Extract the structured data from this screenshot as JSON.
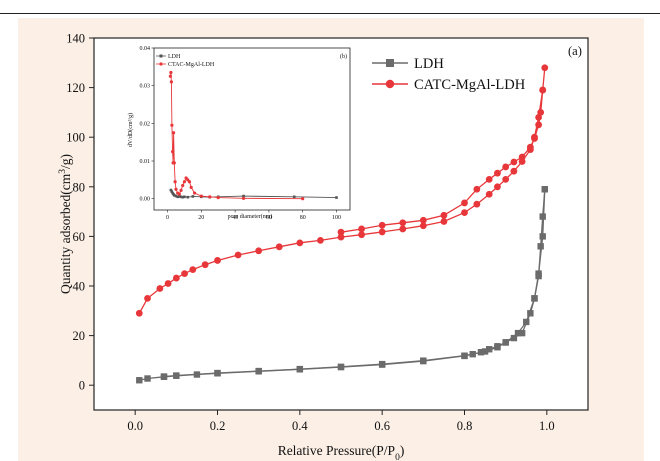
{
  "chart_data": [
    {
      "type": "line",
      "panel_label": "(a)",
      "xlabel": "Relative Pressure(P/P",
      "xlabel_sub": "0",
      "xlabel_end": ")",
      "ylabel": "Quantity adsorbed(cm",
      "ylabel_sup": "3",
      "ylabel_end": "/g)",
      "xlim": [
        -0.1,
        1.1
      ],
      "ylim": [
        -10,
        140
      ],
      "xticks": [
        0.0,
        0.2,
        0.4,
        0.6,
        0.8,
        1.0
      ],
      "xtick_labels": [
        "0.0",
        "0.2",
        "0.4",
        "0.6",
        "0.8",
        "1.0"
      ],
      "yticks": [
        0,
        20,
        40,
        60,
        80,
        100,
        120,
        140
      ],
      "ytick_labels": [
        "0",
        "20",
        "40",
        "60",
        "80",
        "100",
        "120",
        "140"
      ],
      "legend_position": "top-right",
      "series": [
        {
          "name": "LDH",
          "color": "#6b6b6b",
          "marker": "square",
          "adsorption": {
            "x": [
              0.01,
              0.03,
              0.07,
              0.1,
              0.15,
              0.2,
              0.3,
              0.4,
              0.5,
              0.6,
              0.7,
              0.8,
              0.85,
              0.88,
              0.9,
              0.93,
              0.95,
              0.97,
              0.98,
              0.99,
              0.995
            ],
            "y": [
              2,
              2.7,
              3.4,
              3.8,
              4.3,
              4.8,
              5.6,
              6.4,
              7.3,
              8.3,
              9.7,
              11.8,
              13.6,
              15.3,
              17.2,
              21,
              25.5,
              35,
              45,
              60,
              79
            ]
          },
          "desorption": {
            "x": [
              0.995,
              0.99,
              0.985,
              0.98,
              0.97,
              0.96,
              0.94,
              0.92,
              0.9,
              0.88,
              0.86,
              0.84,
              0.82,
              0.8,
              0.7,
              0.6,
              0.5,
              0.4,
              0.3,
              0.2,
              0.1,
              0.07
            ],
            "y": [
              79,
              68,
              56,
              44,
              35,
              29,
              21,
              19,
              17.3,
              15.7,
              14.5,
              13.3,
              12.5,
              11.9,
              9.9,
              8.5,
              7.4,
              6.5,
              5.7,
              4.9,
              3.9,
              3.5
            ]
          }
        },
        {
          "name": "CATC-MgAl-LDH",
          "color": "#e8373a",
          "marker": "circle",
          "adsorption": {
            "x": [
              0.01,
              0.03,
              0.06,
              0.08,
              0.1,
              0.12,
              0.14,
              0.17,
              0.2,
              0.25,
              0.3,
              0.35,
              0.4,
              0.45,
              0.5,
              0.55,
              0.6,
              0.65,
              0.7,
              0.75,
              0.8,
              0.83,
              0.86,
              0.88,
              0.9,
              0.92,
              0.94,
              0.96,
              0.97,
              0.98,
              0.99
            ],
            "y": [
              29,
              35,
              39,
              41,
              43.2,
              45,
              46.6,
              48.6,
              50.3,
              52.5,
              54.2,
              55.8,
              57.4,
              58.4,
              59.7,
              60.7,
              61.8,
              63,
              64.3,
              66,
              69.6,
              73,
              77,
              80,
              83,
              86.3,
              90.2,
              95,
              100,
              108,
              119
            ]
          },
          "desorption": {
            "x": [
              0.995,
              0.99,
              0.985,
              0.98,
              0.97,
              0.96,
              0.94,
              0.92,
              0.9,
              0.88,
              0.86,
              0.83,
              0.8,
              0.75,
              0.7,
              0.65,
              0.6,
              0.55,
              0.5
            ],
            "y": [
              128,
              119,
              110,
              105,
              99.5,
              96,
              92,
              90,
              88,
              85.5,
              83,
              79,
              73.5,
              68.5,
              66.5,
              65.5,
              64.5,
              63,
              61.7
            ]
          }
        }
      ]
    },
    {
      "type": "line",
      "panel_label": "(b)",
      "xlabel": "pore diameter(nm)",
      "ylabel": "dV/dD(cm³/g)",
      "xlim": [
        -8,
        108
      ],
      "ylim": [
        -0.003,
        0.04
      ],
      "xticks": [
        0,
        20,
        40,
        60,
        80,
        100
      ],
      "xtick_labels": [
        "0",
        "20",
        "40",
        "60",
        "80",
        "100"
      ],
      "yticks": [
        0.0,
        0.01,
        0.02,
        0.03,
        0.04
      ],
      "ytick_labels": [
        "0.00",
        "0.01",
        "0.02",
        "0.03",
        "0.04"
      ],
      "legend_position": "top-left",
      "series": [
        {
          "name": "LDH",
          "color": "#555555",
          "marker": "square",
          "x": [
            2.0,
            2.5,
            3.0,
            3.5,
            4.0,
            5.0,
            6.0,
            7.0,
            8.0,
            9.0,
            10.0,
            12.0,
            15.0,
            20.0,
            25.0,
            30.0,
            45.0,
            75.0,
            100.0
          ],
          "y": [
            0.0023,
            0.0019,
            0.0015,
            0.0012,
            0.0009,
            0.0007,
            0.0005,
            0.0006,
            0.0005,
            0.0004,
            0.0005,
            0.0004,
            0.0006,
            0.0005,
            0.0004,
            0.0005,
            0.0007,
            0.0005,
            0.0003
          ]
        },
        {
          "name": "CTAC-MgAl-LDH",
          "color": "#e8373a",
          "marker": "circle",
          "x": [
            1.7,
            2.0,
            2.3,
            2.6,
            3.0,
            3.3,
            3.6,
            4.0,
            4.5,
            5.0,
            6.0,
            7.0,
            8.0,
            9.0,
            10.0,
            11.0,
            12.0,
            13.0,
            14.0,
            16.0,
            20.0,
            25.0,
            30.0,
            45.0,
            80.0
          ],
          "y": [
            0.0325,
            0.0335,
            0.031,
            0.0195,
            0.0125,
            0.0095,
            0.0175,
            0.0095,
            0.0045,
            0.0025,
            0.0015,
            0.0012,
            0.0022,
            0.0035,
            0.0045,
            0.0055,
            0.005,
            0.0045,
            0.003,
            0.0015,
            0.0007,
            0.0005,
            0.0003,
            0.0001,
            0.0
          ]
        }
      ]
    }
  ]
}
